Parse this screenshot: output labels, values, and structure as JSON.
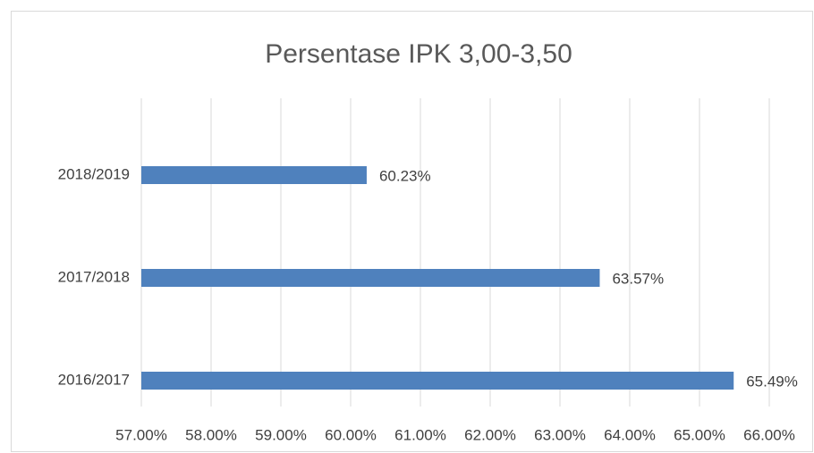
{
  "chart_data": {
    "type": "bar",
    "orientation": "horizontal",
    "title": "Persentase IPK 3,00-3,50",
    "categories": [
      "2016/2017",
      "2017/2018",
      "2018/2019"
    ],
    "values": [
      65.49,
      63.57,
      60.23
    ],
    "value_labels": [
      "65.49%",
      "63.57%",
      "60.23%"
    ],
    "color": "#4f81bd",
    "xlim": [
      57,
      66
    ],
    "xticks": [
      {
        "value": 57,
        "label": "57.00%"
      },
      {
        "value": 58,
        "label": "58.00%"
      },
      {
        "value": 59,
        "label": "59.00%"
      },
      {
        "value": 60,
        "label": "60.00%"
      },
      {
        "value": 61,
        "label": "61.00%"
      },
      {
        "value": 62,
        "label": "62.00%"
      },
      {
        "value": 63,
        "label": "63.00%"
      },
      {
        "value": 64,
        "label": "64.00%"
      },
      {
        "value": 65,
        "label": "65.00%"
      },
      {
        "value": 66,
        "label": "66.00%"
      }
    ],
    "grid": true
  }
}
